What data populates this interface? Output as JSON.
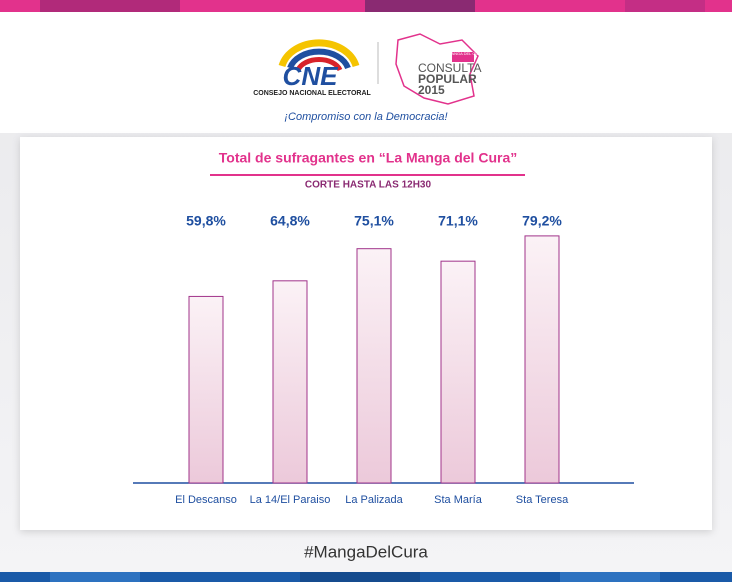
{
  "header": {
    "logo_text": "CNE",
    "logo_caption": "CONSEJO NACIONAL ELECTORAL",
    "event_small": "LA MANGA DEL CURA",
    "event_title": "CONSULTA",
    "event_subtitle": "POPULAR",
    "event_year": "2015",
    "slogan": "¡Compromiso con la Democracia!"
  },
  "chart_data": {
    "type": "bar",
    "title": "Total de sufragantes en “La Manga del Cura”",
    "subtitle": "CORTE HASTA LAS 12H30",
    "categories": [
      "El Descanso",
      "La 14/El Paraiso",
      "La Palizada",
      "Sta María",
      "Sta Teresa"
    ],
    "values": [
      59.8,
      64.8,
      75.1,
      71.1,
      79.2
    ],
    "value_labels": [
      "59,8%",
      "64,8%",
      "75,1%",
      "71,1%",
      "79,2%"
    ],
    "color": "#f2dbe6"
  },
  "footer": {
    "hashtag": "#MangaDelCura"
  }
}
